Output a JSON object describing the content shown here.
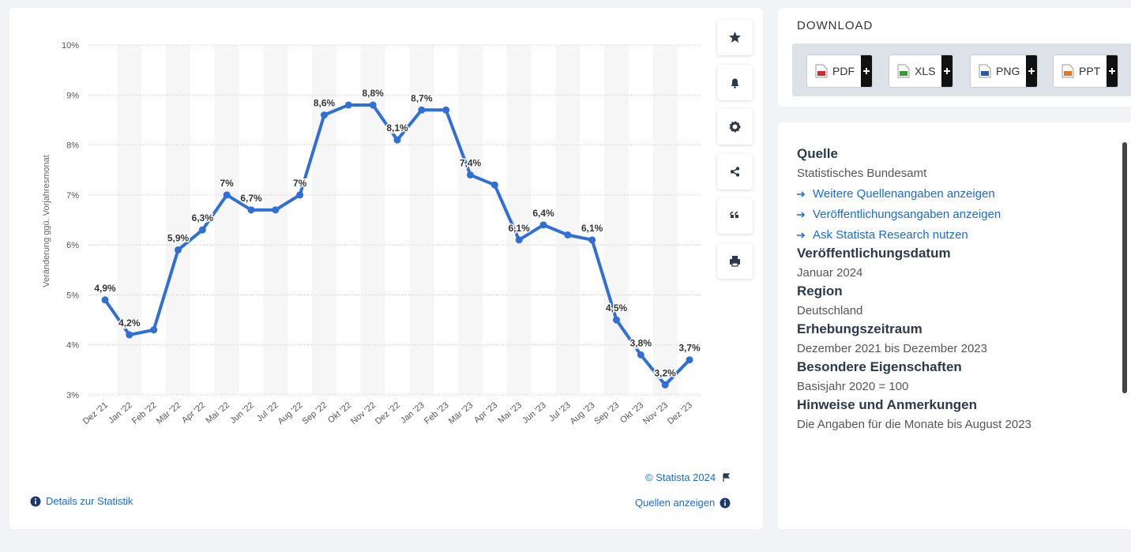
{
  "chart_data": {
    "type": "line",
    "y_label": "Veränderung ggü. Vorjahresmonat",
    "categories": [
      "Dez '21",
      "Jan '22",
      "Feb '22",
      "Mär '22",
      "Apr '22",
      "Mai '22",
      "Jun '22",
      "Jul '22",
      "Aug '22",
      "Sep '22",
      "Okt '22",
      "Nov '22",
      "Dez '22",
      "Jan '23",
      "Feb '23",
      "Mär '23",
      "Apr '23",
      "Mai '23",
      "Jun '23",
      "Jul '23",
      "Aug '23",
      "Sep '23",
      "Okt '23",
      "Nov '23",
      "Dez '23"
    ],
    "values": [
      4.9,
      4.2,
      4.3,
      5.9,
      6.3,
      7.0,
      6.7,
      6.7,
      7.0,
      8.6,
      8.8,
      8.8,
      8.1,
      8.7,
      8.7,
      7.4,
      7.2,
      6.1,
      6.4,
      6.2,
      6.1,
      4.5,
      3.8,
      3.2,
      3.7
    ],
    "value_labels": [
      "4,9%",
      "4,2%",
      null,
      "5,9%",
      "6,3%",
      "7%",
      "6,7%",
      null,
      "7%",
      "8,6%",
      null,
      "8,8%",
      "8,1%",
      "8,7%",
      null,
      "7,4%",
      null,
      "6,1%",
      "6,4%",
      null,
      "6,1%",
      "4,5%",
      "3,8%",
      "3,2%",
      "3,7%"
    ],
    "color": "#2f6fd6",
    "ylim": [
      3,
      10
    ],
    "yticks": [
      {
        "value": 3,
        "label": "3%"
      },
      {
        "value": 4,
        "label": "4%"
      },
      {
        "value": 5,
        "label": "5%"
      },
      {
        "value": 6,
        "label": "6%"
      },
      {
        "value": 7,
        "label": "7%"
      },
      {
        "value": 8,
        "label": "8%"
      },
      {
        "value": 9,
        "label": "9%"
      },
      {
        "value": 10,
        "label": "10%"
      }
    ],
    "grid": true
  },
  "footer": {
    "copyright": "© Statista 2024",
    "details": "Details zur Statistik",
    "sources": "Quellen anzeigen"
  },
  "download": {
    "title": "DOWNLOAD",
    "buttons": [
      "PDF",
      "XLS",
      "PNG",
      "PPT"
    ]
  },
  "info": [
    {
      "heading": "Quelle",
      "text": [
        "Statistisches Bundesamt"
      ],
      "links": [
        "Weitere Quellenangaben anzeigen",
        "Veröffentlichungsangaben anzeigen",
        "Ask Statista Research nutzen"
      ]
    },
    {
      "heading": "Veröffentlichungsdatum",
      "text": [
        "Januar 2024"
      ]
    },
    {
      "heading": "Region",
      "text": [
        "Deutschland"
      ]
    },
    {
      "heading": "Erhebungszeitraum",
      "text": [
        "Dezember 2021 bis Dezember 2023"
      ]
    },
    {
      "heading": "Besondere Eigenschaften",
      "text": [
        "Basisjahr 2020 = 100"
      ]
    },
    {
      "heading": "Hinweise und Anmerkungen",
      "text": [
        "Die Angaben für die Monate bis August 2023"
      ]
    }
  ]
}
